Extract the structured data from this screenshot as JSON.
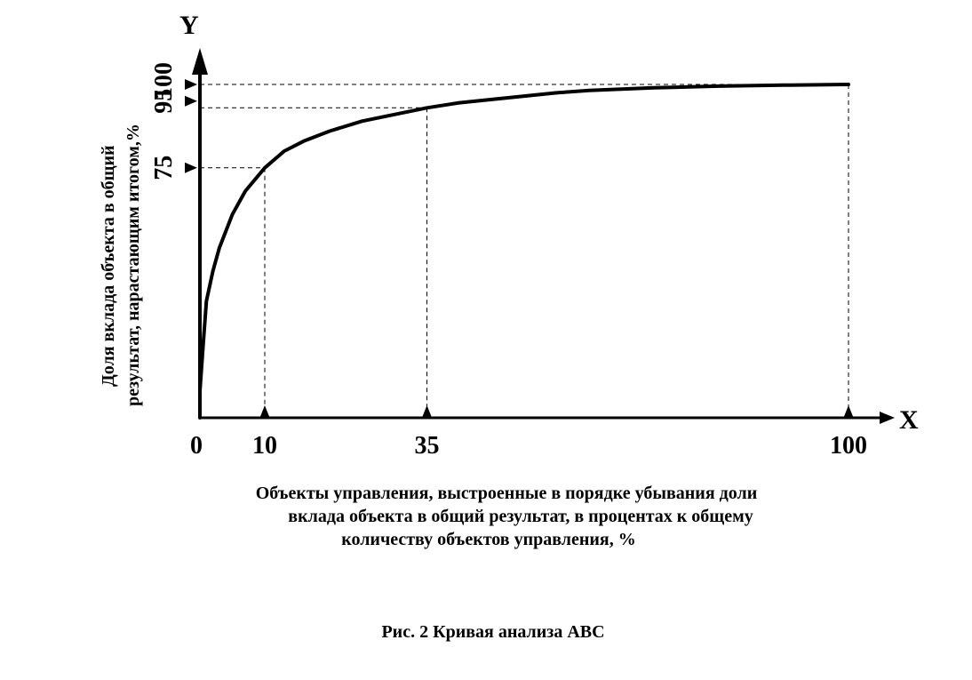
{
  "chart_data": {
    "type": "line",
    "axis_x_name": "X",
    "axis_y_name": "Y",
    "xlabel_lines": [
      "Объекты управления, выстроенные в порядке убывания доли",
      "вклада объекта в общий результат, в процентах к общему",
      "количеству объектов управления, %"
    ],
    "ylabel_lines": [
      "Доля вклада объекта в общий",
      "результат, нарастающим итогом,%"
    ],
    "x_ticks": [
      0,
      10,
      35,
      100
    ],
    "y_ticks": [
      75,
      95,
      100
    ],
    "xlim": [
      0,
      100
    ],
    "ylim": [
      0,
      100
    ],
    "series": [
      {
        "x": [
          0,
          0.5,
          1,
          2,
          3,
          5,
          7,
          10,
          13,
          16,
          20,
          25,
          30,
          35,
          40,
          45,
          50,
          55,
          60,
          70,
          80,
          90,
          100
        ],
        "y": [
          8,
          22,
          35,
          44,
          51,
          61,
          68,
          75,
          80,
          83,
          86,
          89,
          91,
          93,
          94.5,
          95.5,
          96.5,
          97.5,
          98.2,
          99,
          99.5,
          99.8,
          100
        ]
      }
    ],
    "reference_points": [
      {
        "x": 10,
        "y": 75
      },
      {
        "x": 35,
        "y": 93
      },
      {
        "x": 100,
        "y": 100
      }
    ],
    "grid": false,
    "legend": "none"
  },
  "caption": "Рис. 2 Кривая анализа ABC"
}
